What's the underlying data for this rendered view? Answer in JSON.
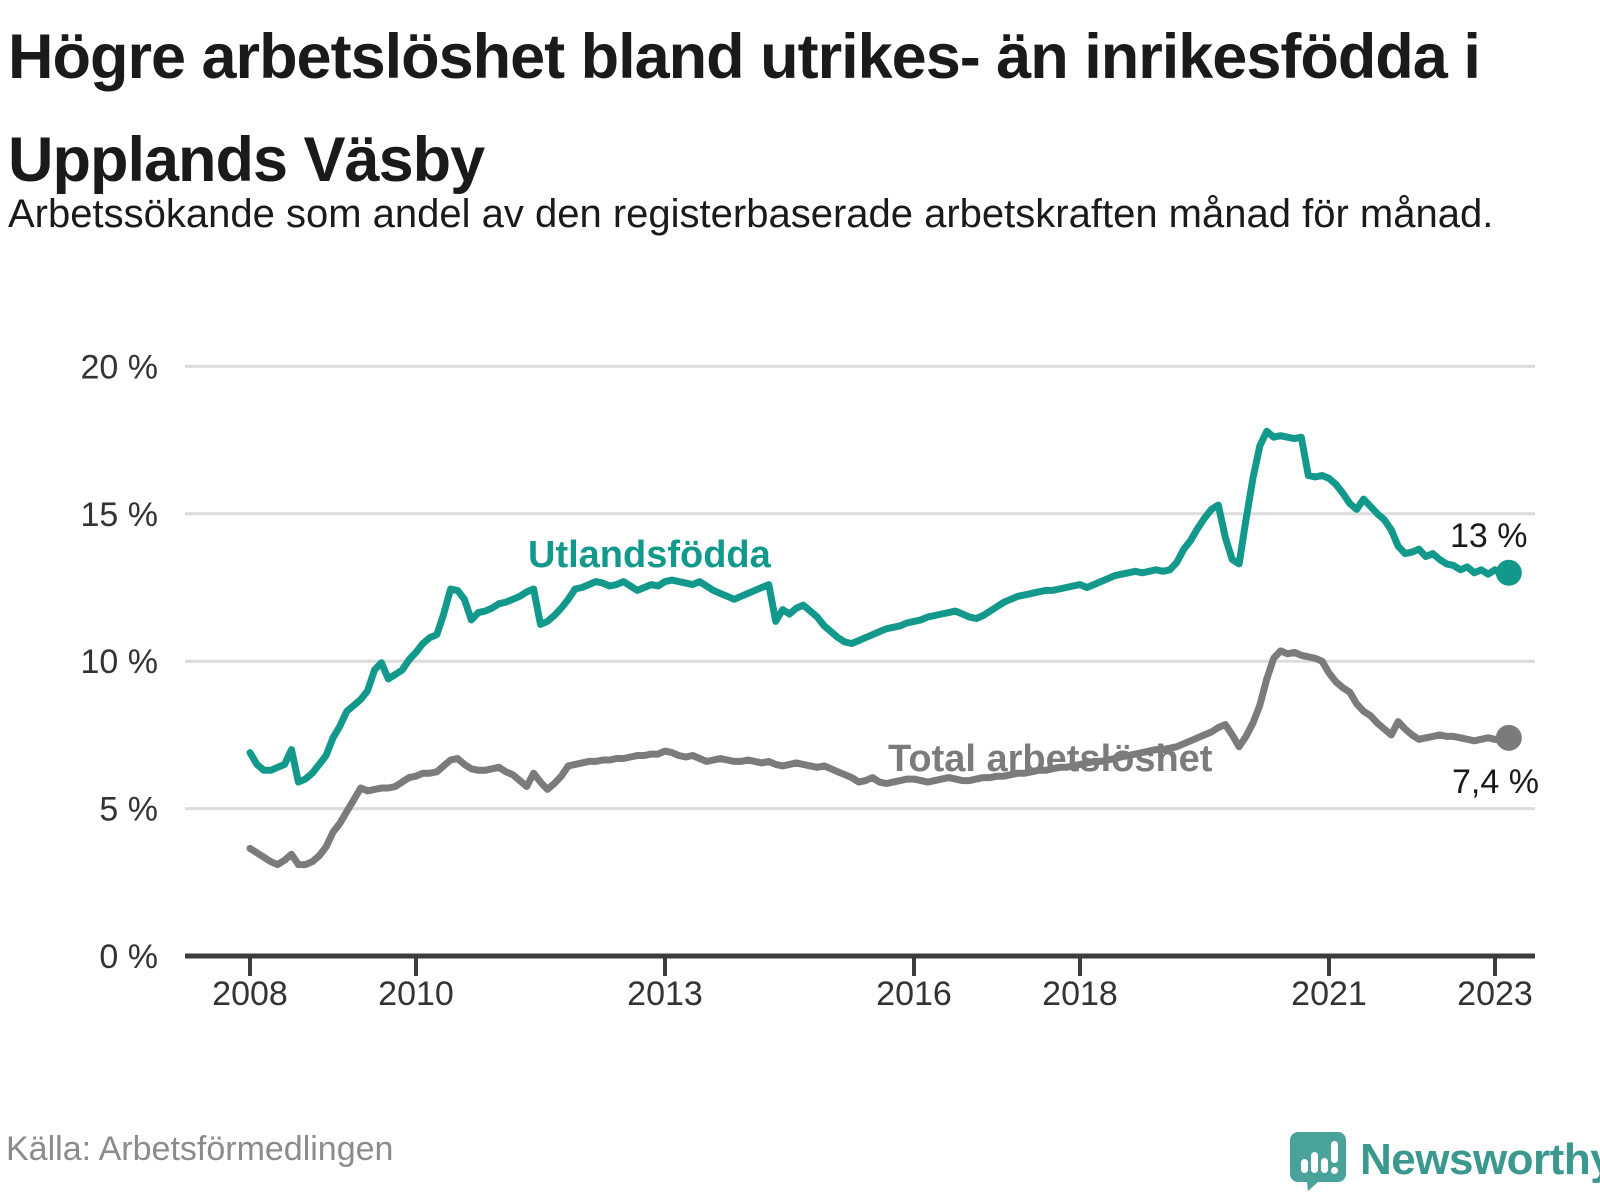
{
  "header": {
    "title": "Högre arbetslöshet bland utrikes- än inrikesfödda i Upplands Väsby",
    "subtitle": "Arbetssökande som andel av den registerbaserade arbetskraften månad för månad."
  },
  "footer": {
    "source": "Källa: Arbetsförmedlingen",
    "brand": "Newsworthy"
  },
  "colors": {
    "teal": "#13998b",
    "gray": "#7b7b7b",
    "gridline": "#dcdcdc",
    "axis": "#3c3c3c",
    "tick_label": "#333333",
    "end_label": "#1a1a1a",
    "logo_icon": "#4aa39a",
    "logo_text": "#3a988f"
  },
  "chart_data": {
    "type": "line",
    "unit": "%",
    "frequency": "monthly",
    "x_start": "2008-01",
    "x_end": "2023-03",
    "ylim": [
      0,
      20
    ],
    "grid": "horizontal",
    "yticks": [
      {
        "value": 0,
        "label": "0 %"
      },
      {
        "value": 5,
        "label": "5 %"
      },
      {
        "value": 10,
        "label": "10 %"
      },
      {
        "value": 15,
        "label": "15 %"
      },
      {
        "value": 20,
        "label": "20 %"
      }
    ],
    "xticks": [
      {
        "year": 2008,
        "label": "2008"
      },
      {
        "year": 2010,
        "label": "2010"
      },
      {
        "year": 2013,
        "label": "2013"
      },
      {
        "year": 2016,
        "label": "2016"
      },
      {
        "year": 2018,
        "label": "2018"
      },
      {
        "year": 2021,
        "label": "2021"
      },
      {
        "year": 2023,
        "label": "2023"
      }
    ],
    "series": [
      {
        "name": "Utlandsfödda",
        "color": "#13998b",
        "end_label": "13 %",
        "end_value": 13.0,
        "values": [
          6.9,
          6.5,
          6.3,
          6.3,
          6.4,
          6.5,
          7.0,
          5.9,
          6.0,
          6.2,
          6.5,
          6.8,
          7.4,
          7.8,
          8.3,
          8.5,
          8.7,
          9.0,
          9.7,
          9.95,
          9.4,
          9.55,
          9.7,
          10.05,
          10.3,
          10.6,
          10.8,
          10.9,
          11.6,
          12.45,
          12.4,
          12.1,
          11.4,
          11.65,
          11.7,
          11.8,
          11.95,
          12.0,
          12.1,
          12.2,
          12.35,
          12.45,
          11.25,
          11.35,
          11.55,
          11.8,
          12.1,
          12.45,
          12.5,
          12.6,
          12.7,
          12.65,
          12.55,
          12.6,
          12.7,
          12.55,
          12.4,
          12.5,
          12.6,
          12.55,
          12.7,
          12.75,
          12.7,
          12.65,
          12.6,
          12.7,
          12.55,
          12.4,
          12.3,
          12.2,
          12.1,
          12.2,
          12.3,
          12.4,
          12.5,
          12.6,
          11.35,
          11.75,
          11.6,
          11.8,
          11.9,
          11.7,
          11.5,
          11.2,
          11.0,
          10.8,
          10.65,
          10.6,
          10.7,
          10.8,
          10.9,
          11.0,
          11.1,
          11.15,
          11.2,
          11.3,
          11.35,
          11.4,
          11.5,
          11.55,
          11.6,
          11.65,
          11.7,
          11.6,
          11.5,
          11.45,
          11.55,
          11.7,
          11.85,
          12.0,
          12.1,
          12.2,
          12.25,
          12.3,
          12.35,
          12.4,
          12.4,
          12.45,
          12.5,
          12.55,
          12.6,
          12.5,
          12.6,
          12.7,
          12.8,
          12.9,
          12.95,
          13.0,
          13.05,
          13.0,
          13.05,
          13.1,
          13.05,
          13.1,
          13.35,
          13.8,
          14.1,
          14.5,
          14.85,
          15.15,
          15.3,
          14.2,
          13.45,
          13.3,
          14.8,
          16.2,
          17.3,
          17.8,
          17.6,
          17.65,
          17.6,
          17.55,
          17.6,
          16.3,
          16.25,
          16.3,
          16.2,
          16.0,
          15.7,
          15.35,
          15.15,
          15.5,
          15.25,
          15.0,
          14.8,
          14.45,
          13.9,
          13.65,
          13.7,
          13.8,
          13.55,
          13.65,
          13.45,
          13.3,
          13.25,
          13.1,
          13.2,
          13.0,
          13.1,
          12.95,
          13.1,
          12.95,
          13.0
        ]
      },
      {
        "name": "Total arbetslöshet",
        "color": "#7b7b7b",
        "end_label": "7,4 %",
        "end_value": 7.4,
        "values": [
          3.65,
          3.5,
          3.35,
          3.2,
          3.1,
          3.25,
          3.45,
          3.1,
          3.1,
          3.2,
          3.4,
          3.7,
          4.2,
          4.5,
          4.9,
          5.3,
          5.7,
          5.6,
          5.65,
          5.7,
          5.7,
          5.75,
          5.9,
          6.05,
          6.1,
          6.2,
          6.2,
          6.25,
          6.45,
          6.65,
          6.7,
          6.5,
          6.35,
          6.3,
          6.3,
          6.35,
          6.4,
          6.25,
          6.15,
          5.95,
          5.75,
          6.2,
          5.9,
          5.65,
          5.85,
          6.1,
          6.45,
          6.5,
          6.55,
          6.6,
          6.6,
          6.65,
          6.65,
          6.7,
          6.7,
          6.75,
          6.8,
          6.8,
          6.85,
          6.85,
          6.95,
          6.9,
          6.8,
          6.75,
          6.8,
          6.7,
          6.6,
          6.65,
          6.7,
          6.65,
          6.6,
          6.6,
          6.65,
          6.6,
          6.55,
          6.6,
          6.5,
          6.45,
          6.5,
          6.55,
          6.5,
          6.45,
          6.4,
          6.45,
          6.35,
          6.25,
          6.15,
          6.05,
          5.9,
          5.95,
          6.05,
          5.9,
          5.85,
          5.9,
          5.95,
          6.0,
          6.0,
          5.95,
          5.9,
          5.95,
          6.0,
          6.05,
          6.0,
          5.95,
          5.95,
          6.0,
          6.05,
          6.05,
          6.1,
          6.1,
          6.15,
          6.2,
          6.2,
          6.25,
          6.3,
          6.3,
          6.35,
          6.4,
          6.4,
          6.45,
          6.5,
          6.55,
          6.6,
          6.6,
          6.65,
          6.7,
          6.75,
          6.8,
          6.85,
          6.9,
          6.95,
          7.0,
          7.0,
          7.05,
          7.1,
          7.2,
          7.3,
          7.4,
          7.5,
          7.6,
          7.75,
          7.85,
          7.5,
          7.1,
          7.45,
          7.9,
          8.5,
          9.4,
          10.1,
          10.35,
          10.25,
          10.3,
          10.2,
          10.15,
          10.1,
          10.0,
          9.6,
          9.3,
          9.1,
          8.95,
          8.55,
          8.3,
          8.15,
          7.9,
          7.7,
          7.5,
          7.95,
          7.7,
          7.5,
          7.35,
          7.4,
          7.45,
          7.5,
          7.45,
          7.45,
          7.4,
          7.35,
          7.3,
          7.35,
          7.4,
          7.35,
          7.3,
          7.4
        ]
      }
    ]
  }
}
